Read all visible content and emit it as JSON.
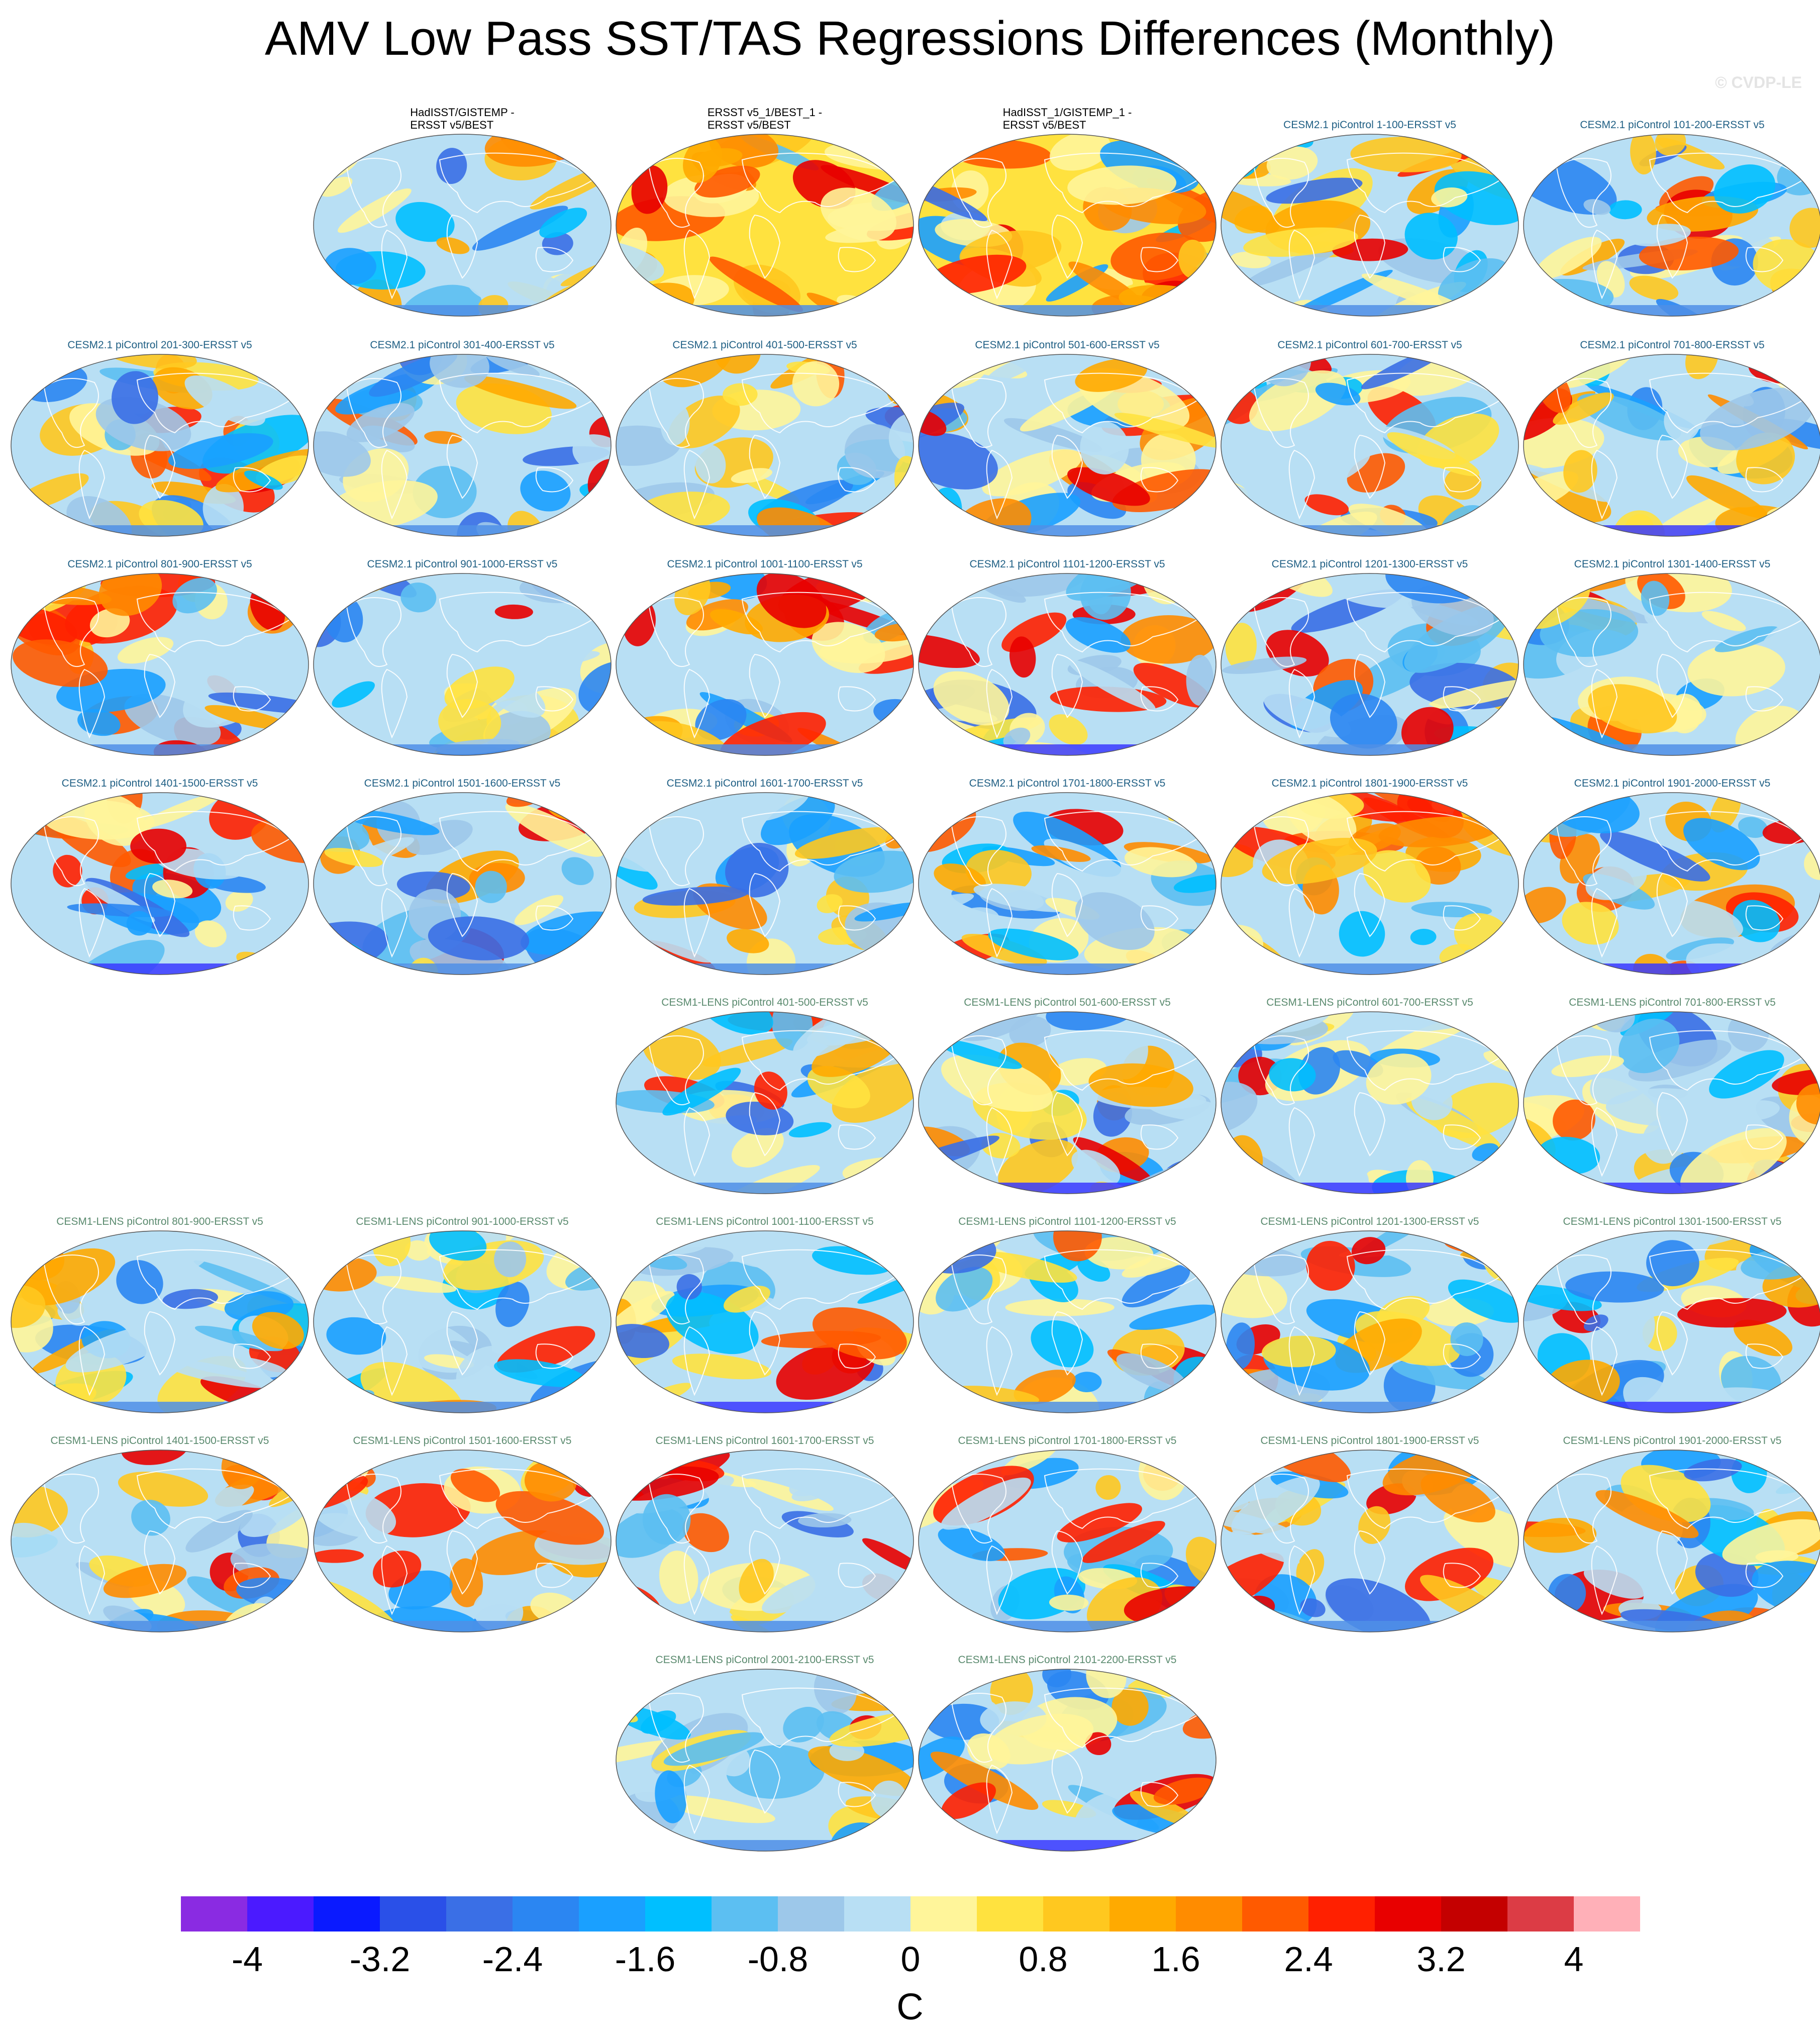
{
  "title": "AMV Low Pass SST/TAS Regressions Differences (Monthly)",
  "watermark": "© CVDP-LE",
  "panels": [
    {
      "label": "HadISST/GISTEMP -\nERSST v5/BEST",
      "group": "obs",
      "pattern": "mild-cool",
      "row": 0,
      "col": 1
    },
    {
      "label": "ERSST v5_1/BEST_1 -\nERSST v5/BEST",
      "group": "obs",
      "pattern": "warm-land",
      "row": 0,
      "col": 2
    },
    {
      "label": "HadISST_1/GISTEMP_1 -\nERSST v5/BEST",
      "group": "obs",
      "pattern": "warm-land",
      "row": 0,
      "col": 3
    },
    {
      "label": "CESM2.1 piControl 1-100-ERSST v5",
      "group": "cesm2",
      "pattern": "mixed",
      "row": 0,
      "col": 4
    },
    {
      "label": "CESM2.1 piControl 101-200-ERSST v5",
      "group": "cesm2",
      "pattern": "mixed",
      "row": 0,
      "col": 5
    },
    {
      "label": "CESM2.1 piControl 201-300-ERSST v5",
      "group": "cesm2",
      "pattern": "mixed",
      "row": 1,
      "col": 0
    },
    {
      "label": "CESM2.1 piControl 301-400-ERSST v5",
      "group": "cesm2",
      "pattern": "mixed",
      "row": 1,
      "col": 1
    },
    {
      "label": "CESM2.1 piControl 401-500-ERSST v5",
      "group": "cesm2",
      "pattern": "warm-north",
      "row": 1,
      "col": 2
    },
    {
      "label": "CESM2.1 piControl 501-600-ERSST v5",
      "group": "cesm2",
      "pattern": "warm-north",
      "row": 1,
      "col": 3
    },
    {
      "label": "CESM2.1 piControl 601-700-ERSST v5",
      "group": "cesm2",
      "pattern": "mixed",
      "row": 1,
      "col": 4
    },
    {
      "label": "CESM2.1 piControl 701-800-ERSST v5",
      "group": "cesm2",
      "pattern": "cool-pacific",
      "row": 1,
      "col": 5
    },
    {
      "label": "CESM2.1 piControl 801-900-ERSST v5",
      "group": "cesm2",
      "pattern": "warm-north",
      "row": 2,
      "col": 0
    },
    {
      "label": "CESM2.1 piControl 901-1000-ERSST v5",
      "group": "cesm2",
      "pattern": "mixed",
      "row": 2,
      "col": 1
    },
    {
      "label": "CESM2.1 piControl 1001-1100-ERSST v5",
      "group": "cesm2",
      "pattern": "warm-north",
      "row": 2,
      "col": 2
    },
    {
      "label": "CESM2.1 piControl 1101-1200-ERSST v5",
      "group": "cesm2",
      "pattern": "cool-north",
      "row": 2,
      "col": 3
    },
    {
      "label": "CESM2.1 piControl 1201-1300-ERSST v5",
      "group": "cesm2",
      "pattern": "mixed",
      "row": 2,
      "col": 4
    },
    {
      "label": "CESM2.1 piControl 1301-1400-ERSST v5",
      "group": "cesm2",
      "pattern": "mild-cool",
      "row": 2,
      "col": 5
    },
    {
      "label": "CESM2.1 piControl 1401-1500-ERSST v5",
      "group": "cesm2",
      "pattern": "cool-pacific",
      "row": 3,
      "col": 0
    },
    {
      "label": "CESM2.1 piControl 1501-1600-ERSST v5",
      "group": "cesm2",
      "pattern": "mixed",
      "row": 3,
      "col": 1
    },
    {
      "label": "CESM2.1 piControl 1601-1700-ERSST v5",
      "group": "cesm2",
      "pattern": "mild-cool",
      "row": 3,
      "col": 2
    },
    {
      "label": "CESM2.1 piControl 1701-1800-ERSST v5",
      "group": "cesm2",
      "pattern": "mild-cool",
      "row": 3,
      "col": 3
    },
    {
      "label": "CESM2.1 piControl 1801-1900-ERSST v5",
      "group": "cesm2",
      "pattern": "warm-north",
      "row": 3,
      "col": 4
    },
    {
      "label": "CESM2.1 piControl 1901-2000-ERSST v5",
      "group": "cesm2",
      "pattern": "cool-pacific",
      "row": 3,
      "col": 5
    },
    {
      "label": "CESM1-LENS piControl 401-500-ERSST v5",
      "group": "cesm1",
      "pattern": "mixed",
      "row": 4,
      "col": 2
    },
    {
      "label": "CESM1-LENS piControl 501-600-ERSST v5",
      "group": "cesm1",
      "pattern": "cool-north",
      "row": 4,
      "col": 3
    },
    {
      "label": "CESM1-LENS piControl 601-700-ERSST v5",
      "group": "cesm1",
      "pattern": "cool-north",
      "row": 4,
      "col": 4
    },
    {
      "label": "CESM1-LENS piControl 701-800-ERSST v5",
      "group": "cesm1",
      "pattern": "cool-pacific",
      "row": 4,
      "col": 5
    },
    {
      "label": "CESM1-LENS piControl 801-900-ERSST v5",
      "group": "cesm1",
      "pattern": "mixed",
      "row": 5,
      "col": 0
    },
    {
      "label": "CESM1-LENS piControl 901-1000-ERSST v5",
      "group": "cesm1",
      "pattern": "mild-cool",
      "row": 5,
      "col": 1
    },
    {
      "label": "CESM1-LENS piControl 1001-1100-ERSST v5",
      "group": "cesm1",
      "pattern": "cool-north",
      "row": 5,
      "col": 2
    },
    {
      "label": "CESM1-LENS piControl 1101-1200-ERSST v5",
      "group": "cesm1",
      "pattern": "mixed",
      "row": 5,
      "col": 3
    },
    {
      "label": "CESM1-LENS piControl 1201-1300-ERSST v5",
      "group": "cesm1",
      "pattern": "mixed",
      "row": 5,
      "col": 4
    },
    {
      "label": "CESM1-LENS piControl 1301-1500-ERSST v5",
      "group": "cesm1",
      "pattern": "cool-north",
      "row": 5,
      "col": 5
    },
    {
      "label": "CESM1-LENS piControl 1401-1500-ERSST v5",
      "group": "cesm1",
      "pattern": "mixed",
      "row": 6,
      "col": 0
    },
    {
      "label": "CESM1-LENS piControl 1501-1600-ERSST v5",
      "group": "cesm1",
      "pattern": "warm-north",
      "row": 6,
      "col": 1
    },
    {
      "label": "CESM1-LENS piControl 1601-1700-ERSST v5",
      "group": "cesm1",
      "pattern": "mixed",
      "row": 6,
      "col": 2
    },
    {
      "label": "CESM1-LENS piControl 1701-1800-ERSST v5",
      "group": "cesm1",
      "pattern": "warm-north",
      "row": 6,
      "col": 3
    },
    {
      "label": "CESM1-LENS piControl 1801-1900-ERSST v5",
      "group": "cesm1",
      "pattern": "mixed",
      "row": 6,
      "col": 4
    },
    {
      "label": "CESM1-LENS piControl 1901-2000-ERSST v5",
      "group": "cesm1",
      "pattern": "mixed",
      "row": 6,
      "col": 5
    },
    {
      "label": "CESM1-LENS piControl 2001-2100-ERSST v5",
      "group": "cesm1",
      "pattern": "mild-cool",
      "row": 7,
      "col": 2
    },
    {
      "label": "CESM1-LENS piControl 2101-2200-ERSST v5",
      "group": "cesm1",
      "pattern": "cool-north",
      "row": 7,
      "col": 3
    }
  ],
  "colorbar": {
    "units": "C",
    "colors": [
      "#8a2be2",
      "#4b1aff",
      "#0a1aff",
      "#2a50e8",
      "#3a6fe6",
      "#2b86f2",
      "#1aa0ff",
      "#00bfff",
      "#5cbff2",
      "#9dc8ea",
      "#b8dff4",
      "#fff59a",
      "#ffe23f",
      "#ffc81f",
      "#ffaa00",
      "#ff8c00",
      "#ff5a00",
      "#ff2000",
      "#e80000",
      "#c40000",
      "#dc3c45",
      "#ffb0b8"
    ],
    "tick_labels": [
      "-4",
      "-3.2",
      "-2.4",
      "-1.6",
      "-0.8",
      "0",
      "0.8",
      "1.6",
      "2.4",
      "3.2",
      "4"
    ]
  }
}
